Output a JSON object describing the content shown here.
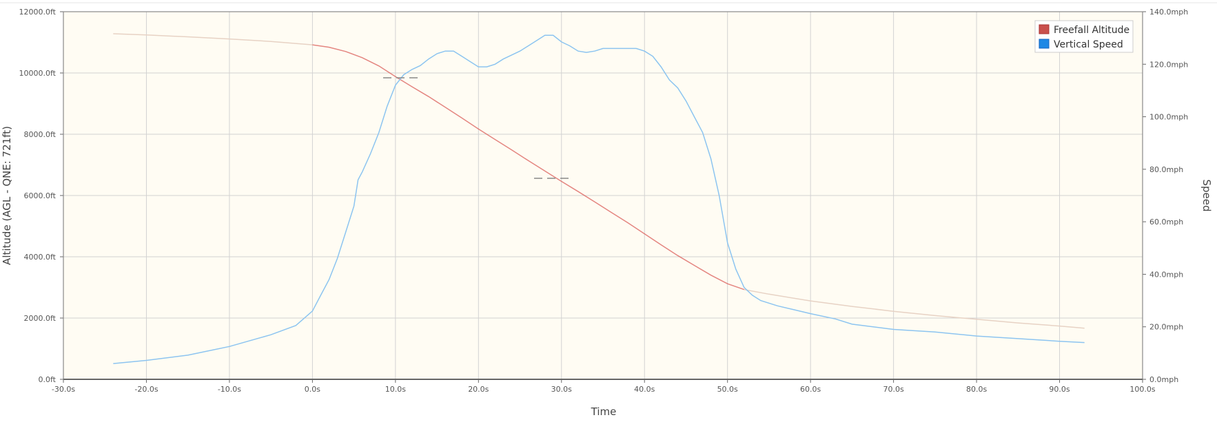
{
  "chart_data": {
    "type": "line",
    "x_ticks": [
      "-30.0s",
      "-20.0s",
      "-10.0s",
      "0.0s",
      "10.0s",
      "20.0s",
      "30.0s",
      "40.0s",
      "50.0s",
      "60.0s",
      "70.0s",
      "80.0s",
      "90.0s",
      "100.0s"
    ],
    "y_left_ticks": [
      "0.0ft",
      "2000.0ft",
      "4000.0ft",
      "6000.0ft",
      "8000.0ft",
      "10000.0ft",
      "12000.0ft"
    ],
    "y_right_ticks": [
      "0.0mph",
      "20.0mph",
      "40.0mph",
      "60.0mph",
      "80.0mph",
      "100.0mph",
      "120.0mph",
      "140.0mph"
    ],
    "xlabel": "Time",
    "ylabel_left": "Altitude (AGL - QNE: 721ft)",
    "ylabel_right": "Speed",
    "xlim": [
      -30,
      100
    ],
    "ylim_left": [
      0,
      12000
    ],
    "ylim_right": [
      0,
      140
    ],
    "legend_position": "top-right",
    "grid": true,
    "background_color": "#fffcf3",
    "series": [
      {
        "name": "Freefall Altitude",
        "axis": "left",
        "color": "#d9534f",
        "faded_color": "#e7d2c4",
        "active_range": [
          0,
          52
        ],
        "points": [
          [
            -24,
            11280
          ],
          [
            -20,
            11240
          ],
          [
            -15,
            11180
          ],
          [
            -10,
            11110
          ],
          [
            -5,
            11030
          ],
          [
            0,
            10920
          ],
          [
            2,
            10840
          ],
          [
            4,
            10700
          ],
          [
            6,
            10500
          ],
          [
            8,
            10230
          ],
          [
            10,
            9880
          ],
          [
            12,
            9550
          ],
          [
            14,
            9230
          ],
          [
            16,
            8880
          ],
          [
            18,
            8530
          ],
          [
            20,
            8170
          ],
          [
            22,
            7830
          ],
          [
            24,
            7490
          ],
          [
            26,
            7140
          ],
          [
            28,
            6800
          ],
          [
            30,
            6460
          ],
          [
            32,
            6130
          ],
          [
            34,
            5790
          ],
          [
            36,
            5450
          ],
          [
            38,
            5110
          ],
          [
            40,
            4750
          ],
          [
            42,
            4390
          ],
          [
            44,
            4040
          ],
          [
            46,
            3720
          ],
          [
            48,
            3400
          ],
          [
            50,
            3120
          ],
          [
            52,
            2930
          ],
          [
            55,
            2780
          ],
          [
            60,
            2560
          ],
          [
            65,
            2380
          ],
          [
            70,
            2220
          ],
          [
            75,
            2080
          ],
          [
            80,
            1960
          ],
          [
            85,
            1840
          ],
          [
            90,
            1740
          ],
          [
            93,
            1670
          ]
        ]
      },
      {
        "name": "Vertical Speed",
        "axis": "right",
        "color": "#8cc4f0",
        "points": [
          [
            -24,
            6
          ],
          [
            -20,
            7.2
          ],
          [
            -15,
            9.2
          ],
          [
            -10,
            12.5
          ],
          [
            -5,
            17
          ],
          [
            -2,
            20.5
          ],
          [
            0,
            26
          ],
          [
            1,
            32
          ],
          [
            2,
            38
          ],
          [
            3,
            46
          ],
          [
            4,
            56
          ],
          [
            5,
            66
          ],
          [
            5.5,
            76
          ],
          [
            6,
            79
          ],
          [
            7,
            86
          ],
          [
            8,
            94
          ],
          [
            9,
            104
          ],
          [
            10,
            112
          ],
          [
            11,
            116
          ],
          [
            12,
            118
          ],
          [
            13,
            119.5
          ],
          [
            14,
            122
          ],
          [
            15,
            124
          ],
          [
            16,
            125
          ],
          [
            17,
            125
          ],
          [
            18,
            123
          ],
          [
            19,
            121
          ],
          [
            20,
            119
          ],
          [
            21,
            119
          ],
          [
            22,
            120
          ],
          [
            23,
            122
          ],
          [
            24,
            123.5
          ],
          [
            25,
            125
          ],
          [
            26,
            127
          ],
          [
            27,
            129
          ],
          [
            28,
            131
          ],
          [
            29,
            131
          ],
          [
            30,
            128.5
          ],
          [
            31,
            127
          ],
          [
            32,
            125
          ],
          [
            33,
            124.5
          ],
          [
            34,
            125
          ],
          [
            35,
            126
          ],
          [
            36,
            126
          ],
          [
            37,
            126
          ],
          [
            38,
            126
          ],
          [
            39,
            126
          ],
          [
            40,
            125
          ],
          [
            41,
            123
          ],
          [
            42,
            119
          ],
          [
            43,
            114
          ],
          [
            44,
            111
          ],
          [
            45,
            106
          ],
          [
            46,
            100
          ],
          [
            47,
            94
          ],
          [
            48,
            84
          ],
          [
            49,
            70
          ],
          [
            50,
            52
          ],
          [
            51,
            42
          ],
          [
            52,
            35
          ],
          [
            53,
            32
          ],
          [
            54,
            30
          ],
          [
            56,
            28
          ],
          [
            58,
            26.5
          ],
          [
            60,
            25
          ],
          [
            63,
            23
          ],
          [
            65,
            21
          ],
          [
            70,
            19
          ],
          [
            75,
            18
          ],
          [
            80,
            16.5
          ],
          [
            85,
            15.5
          ],
          [
            90,
            14.5
          ],
          [
            93,
            14
          ]
        ]
      }
    ]
  }
}
